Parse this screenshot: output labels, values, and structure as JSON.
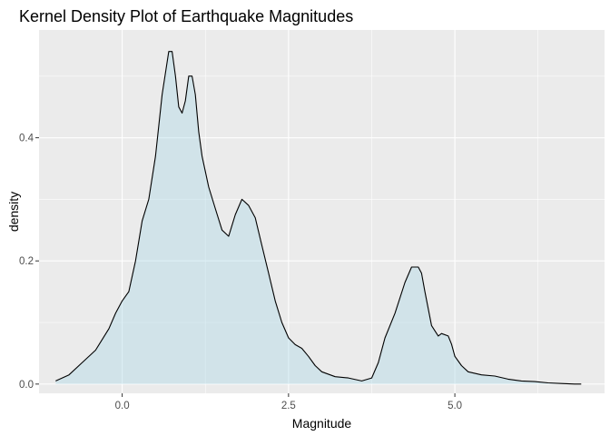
{
  "chart_data": {
    "type": "area",
    "title": "Kernel Density Plot of Earthquake Magnitudes",
    "xlabel": "Magnitude",
    "ylabel": "density",
    "xlim": [
      -1.25,
      7.25
    ],
    "ylim": [
      -0.015,
      0.575
    ],
    "x_ticks": [
      0.0,
      2.5,
      5.0
    ],
    "x_tick_labels": [
      "0.0",
      "2.5",
      "5.0"
    ],
    "y_ticks": [
      0.0,
      0.2,
      0.4
    ],
    "y_tick_labels": [
      "0.0",
      "0.2",
      "0.4"
    ],
    "grid": true,
    "legend": "none",
    "colors": {
      "panel": "#ebebeb",
      "grid": "#ffffff",
      "fill": "#add8e6",
      "fill_opacity": 0.42,
      "line": "#000000"
    },
    "series": [
      {
        "x": [
          -1.0,
          -0.8,
          -0.6,
          -0.4,
          -0.2,
          -0.1,
          0.0,
          0.1,
          0.2,
          0.3,
          0.4,
          0.5,
          0.6,
          0.7,
          0.75,
          0.8,
          0.85,
          0.9,
          0.95,
          1.0,
          1.05,
          1.1,
          1.15,
          1.2,
          1.3,
          1.4,
          1.5,
          1.6,
          1.7,
          1.8,
          1.9,
          2.0,
          2.1,
          2.2,
          2.3,
          2.4,
          2.5,
          2.6,
          2.7,
          2.8,
          2.9,
          3.0,
          3.2,
          3.4,
          3.6,
          3.75,
          3.85,
          3.95,
          4.1,
          4.25,
          4.35,
          4.45,
          4.5,
          4.55,
          4.65,
          4.75,
          4.8,
          4.9,
          4.95,
          5.0,
          5.1,
          5.2,
          5.4,
          5.6,
          5.8,
          6.0,
          6.2,
          6.4,
          6.6,
          6.8,
          6.9
        ],
        "y": [
          0.005,
          0.015,
          0.035,
          0.055,
          0.09,
          0.115,
          0.135,
          0.15,
          0.2,
          0.265,
          0.3,
          0.37,
          0.47,
          0.54,
          0.54,
          0.5,
          0.45,
          0.44,
          0.46,
          0.5,
          0.5,
          0.47,
          0.41,
          0.37,
          0.32,
          0.285,
          0.25,
          0.24,
          0.275,
          0.3,
          0.29,
          0.27,
          0.225,
          0.18,
          0.135,
          0.1,
          0.075,
          0.064,
          0.058,
          0.045,
          0.03,
          0.02,
          0.012,
          0.01,
          0.005,
          0.01,
          0.035,
          0.075,
          0.115,
          0.165,
          0.19,
          0.19,
          0.18,
          0.15,
          0.095,
          0.078,
          0.082,
          0.078,
          0.065,
          0.045,
          0.03,
          0.02,
          0.015,
          0.013,
          0.008,
          0.005,
          0.004,
          0.002,
          0.001,
          0.0,
          0.0
        ]
      }
    ]
  }
}
